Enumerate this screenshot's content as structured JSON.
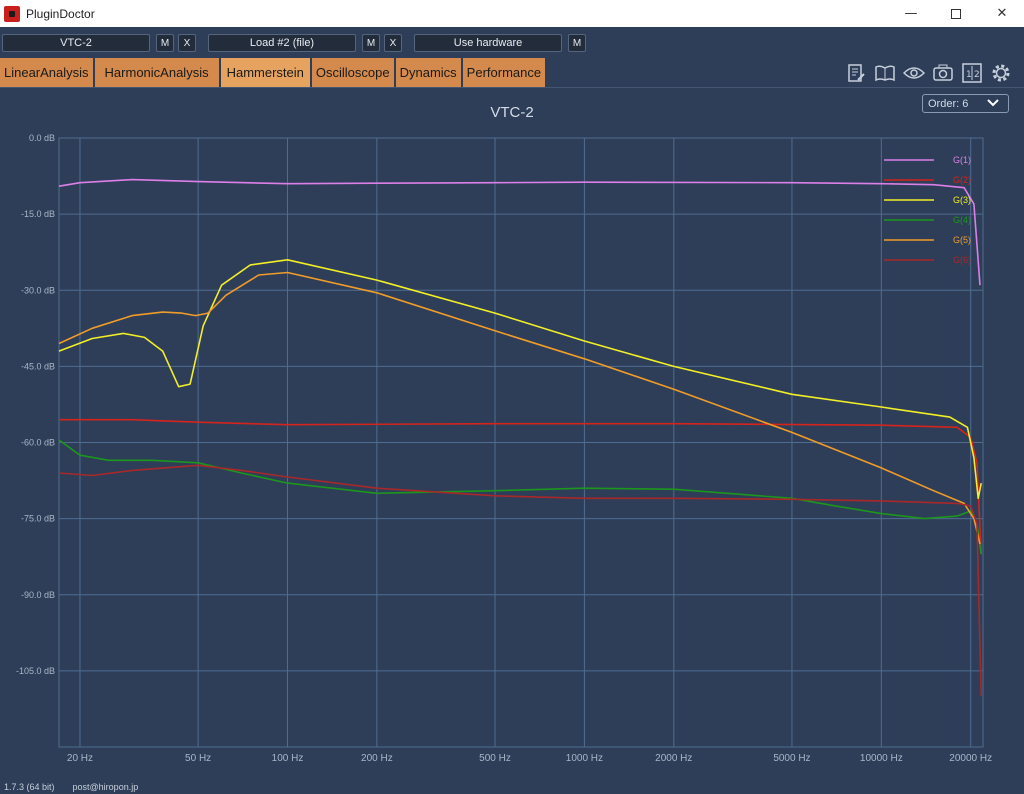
{
  "window": {
    "title": "PluginDoctor",
    "minimize": "—",
    "close": "✕"
  },
  "toolbar": {
    "plugin_name": "VTC-2",
    "load_label": "Load #2 (file)",
    "hardware_label": "Use hardware",
    "m_label": "M",
    "x_label": "X"
  },
  "tabs": [
    {
      "label": "LinearAnalysis"
    },
    {
      "label": "HarmonicAnalysis"
    },
    {
      "label": "Hammerstein"
    },
    {
      "label": "Oscilloscope"
    },
    {
      "label": "Dynamics"
    },
    {
      "label": "Performance"
    }
  ],
  "tool_icons": [
    "notes-icon",
    "book-icon",
    "eye-icon",
    "camera-icon",
    "compare-icon",
    "gear-icon"
  ],
  "order_select": {
    "value": "Order: 6"
  },
  "footer": {
    "version": "1.7.3 (64 bit)",
    "email": "post@hiropon.jp"
  },
  "colors": {
    "background": "#2e3e58",
    "grid": "#4f6d91",
    "tab": "#d48a4c",
    "g1": "#dc7fe8",
    "g2": "#d4241c",
    "g3": "#f2ee27",
    "g4": "#1c961c",
    "g5": "#f09c2a",
    "g6": "#a8282a"
  },
  "chart_data": {
    "type": "line",
    "title": "VTC-2",
    "x_scale": "log",
    "xlim": [
      17,
      22000
    ],
    "ylim": [
      -120,
      0
    ],
    "x_ticks": [
      20,
      50,
      100,
      200,
      500,
      1000,
      2000,
      5000,
      10000,
      20000
    ],
    "x_tick_labels": [
      "20 Hz",
      "50 Hz",
      "100 Hz",
      "200 Hz",
      "500 Hz",
      "1000 Hz",
      "2000 Hz",
      "5000 Hz",
      "10000 Hz",
      "20000 Hz"
    ],
    "y_ticks": [
      0,
      -15,
      -30,
      -45,
      -60,
      -75,
      -90,
      -105
    ],
    "y_tick_labels": [
      "0.0 dB",
      "-15.0 dB",
      "-30.0 dB",
      "-45.0 dB",
      "-60.0 dB",
      "-75.0 dB",
      "-90.0 dB",
      "-105.0 dB"
    ],
    "grid": true,
    "legend_position": "top-right",
    "series": [
      {
        "name": "G(1)",
        "color": "#dc7fe8",
        "points": [
          [
            17,
            -9.5
          ],
          [
            20,
            -8.8
          ],
          [
            30,
            -8.2
          ],
          [
            50,
            -8.6
          ],
          [
            100,
            -9.0
          ],
          [
            200,
            -8.9
          ],
          [
            500,
            -8.8
          ],
          [
            1000,
            -8.7
          ],
          [
            5000,
            -8.8
          ],
          [
            10000,
            -9.0
          ],
          [
            15000,
            -9.2
          ],
          [
            19000,
            -9.8
          ],
          [
            20500,
            -13
          ],
          [
            21500,
            -29
          ]
        ]
      },
      {
        "name": "G(2)",
        "color": "#d4241c",
        "points": [
          [
            17,
            -55.5
          ],
          [
            30,
            -55.5
          ],
          [
            50,
            -56
          ],
          [
            100,
            -56.5
          ],
          [
            500,
            -56.3
          ],
          [
            2000,
            -56.3
          ],
          [
            10000,
            -56.6
          ],
          [
            18000,
            -57
          ],
          [
            20000,
            -59
          ],
          [
            21000,
            -64
          ],
          [
            21700,
            -82
          ]
        ]
      },
      {
        "name": "G(3)",
        "color": "#f2ee27",
        "points": [
          [
            17,
            -42
          ],
          [
            22,
            -39.5
          ],
          [
            28,
            -38.5
          ],
          [
            33,
            -39.3
          ],
          [
            38,
            -42
          ],
          [
            43,
            -49
          ],
          [
            47,
            -48.5
          ],
          [
            52,
            -37
          ],
          [
            60,
            -29
          ],
          [
            75,
            -25
          ],
          [
            100,
            -24
          ],
          [
            200,
            -28
          ],
          [
            500,
            -34.5
          ],
          [
            1000,
            -40
          ],
          [
            2000,
            -45
          ],
          [
            5000,
            -50.5
          ],
          [
            10000,
            -53
          ],
          [
            17000,
            -55
          ],
          [
            19500,
            -57
          ],
          [
            20500,
            -63
          ],
          [
            21200,
            -71
          ],
          [
            21700,
            -68
          ]
        ]
      },
      {
        "name": "G(4)",
        "color": "#1c961c",
        "points": [
          [
            17,
            -59.5
          ],
          [
            20,
            -62.5
          ],
          [
            25,
            -63.5
          ],
          [
            35,
            -63.5
          ],
          [
            50,
            -64
          ],
          [
            70,
            -66
          ],
          [
            100,
            -68
          ],
          [
            200,
            -70
          ],
          [
            500,
            -69.5
          ],
          [
            1000,
            -69
          ],
          [
            2000,
            -69.2
          ],
          [
            5000,
            -71
          ],
          [
            7000,
            -72.5
          ],
          [
            10000,
            -74
          ],
          [
            14000,
            -75
          ],
          [
            18000,
            -74.5
          ],
          [
            20000,
            -73.5
          ],
          [
            21000,
            -76
          ],
          [
            21700,
            -82
          ]
        ]
      },
      {
        "name": "G(5)",
        "color": "#f09c2a",
        "points": [
          [
            17,
            -40.5
          ],
          [
            22,
            -37.5
          ],
          [
            30,
            -35
          ],
          [
            38,
            -34.3
          ],
          [
            44,
            -34.5
          ],
          [
            49,
            -35
          ],
          [
            54,
            -34.5
          ],
          [
            62,
            -31
          ],
          [
            80,
            -27
          ],
          [
            100,
            -26.5
          ],
          [
            200,
            -30.5
          ],
          [
            500,
            -38
          ],
          [
            1000,
            -43.5
          ],
          [
            2000,
            -49.5
          ],
          [
            5000,
            -58
          ],
          [
            10000,
            -65
          ],
          [
            15000,
            -69.5
          ],
          [
            19000,
            -72
          ],
          [
            20500,
            -75
          ],
          [
            21500,
            -80
          ]
        ]
      },
      {
        "name": "G(6)",
        "color": "#a8282a",
        "points": [
          [
            17,
            -66
          ],
          [
            22,
            -66.5
          ],
          [
            30,
            -65.5
          ],
          [
            50,
            -64.5
          ],
          [
            70,
            -65.5
          ],
          [
            100,
            -66.8
          ],
          [
            200,
            -69
          ],
          [
            500,
            -70.5
          ],
          [
            1000,
            -71
          ],
          [
            2000,
            -71
          ],
          [
            5000,
            -71.2
          ],
          [
            10000,
            -71.5
          ],
          [
            18000,
            -72
          ],
          [
            20000,
            -72.5
          ],
          [
            21000,
            -76
          ],
          [
            21700,
            -110
          ]
        ]
      }
    ]
  }
}
